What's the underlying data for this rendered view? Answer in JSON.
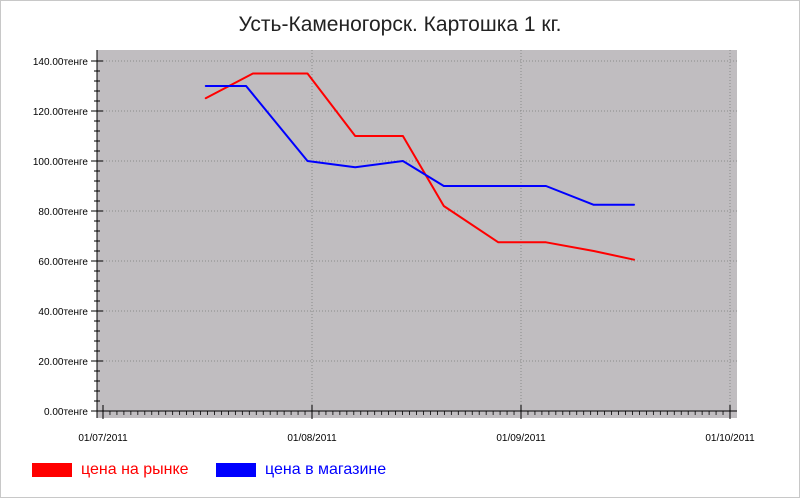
{
  "chart_data": {
    "type": "line",
    "title": "Усть-Каменогорск. Картошка 1 кг.",
    "xlabel": "",
    "ylabel": "",
    "x_axis": {
      "type": "date",
      "range": [
        "2011-07-01",
        "2011-10-01"
      ],
      "tick_labels": [
        "01/07/2011",
        "01/08/2011",
        "01/09/2011",
        "01/10/2011"
      ]
    },
    "y_axis": {
      "ylim": [
        0,
        140
      ],
      "tick_labels": [
        "0.00тенге",
        "20.00тенге",
        "40.00тенге",
        "60.00тенге",
        "80.00тенге",
        "100.00тенге",
        "120.00тенге",
        "140.00тенге"
      ]
    },
    "grid": true,
    "legend_position": "bottom-left",
    "series": [
      {
        "name": "цена на рынке",
        "color": "#ff0000",
        "points": [
          {
            "x": "2011-07-16",
            "y": 125
          },
          {
            "x": "2011-07-23",
            "y": 135
          },
          {
            "x": "2011-07-31",
            "y": 135
          },
          {
            "x": "2011-08-07",
            "y": 110
          },
          {
            "x": "2011-08-14",
            "y": 110
          },
          {
            "x": "2011-08-20",
            "y": 82
          },
          {
            "x": "2011-08-28",
            "y": 67.5
          },
          {
            "x": "2011-09-04",
            "y": 67.5
          },
          {
            "x": "2011-09-11",
            "y": 64
          },
          {
            "x": "2011-09-17",
            "y": 60.5
          }
        ]
      },
      {
        "name": "цена в магазине",
        "color": "#0000ff",
        "points": [
          {
            "x": "2011-07-16",
            "y": 130
          },
          {
            "x": "2011-07-22",
            "y": 130
          },
          {
            "x": "2011-07-31",
            "y": 100
          },
          {
            "x": "2011-08-07",
            "y": 97.5
          },
          {
            "x": "2011-08-14",
            "y": 100
          },
          {
            "x": "2011-08-20",
            "y": 90
          },
          {
            "x": "2011-08-28",
            "y": 90
          },
          {
            "x": "2011-09-04",
            "y": 90
          },
          {
            "x": "2011-09-11",
            "y": 82.5
          },
          {
            "x": "2011-09-17",
            "y": 82.5
          }
        ]
      }
    ]
  },
  "colors": {
    "plot_background": "#c0bdc0",
    "grid": "#8a8a8a",
    "axis": "#000000"
  }
}
